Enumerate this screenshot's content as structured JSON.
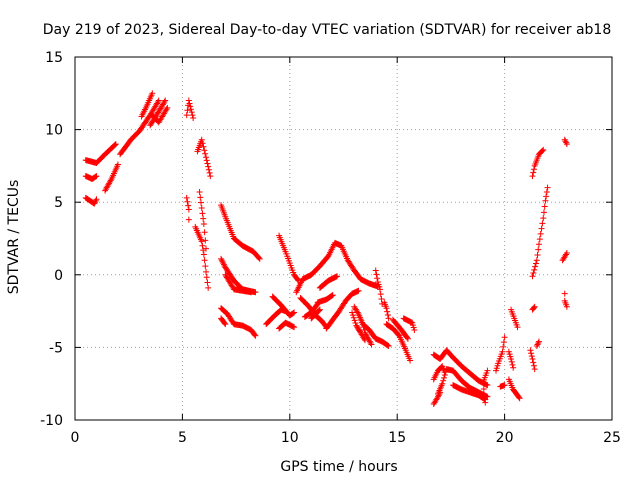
{
  "chart_data": {
    "type": "scatter",
    "title": "Day 219 of 2023, Sidereal Day-to-day VTEC variation (SDTVAR) for receiver ab18",
    "xlabel": "GPS time / hours",
    "ylabel": "SDTVAR / TECUs",
    "xlim": [
      0,
      25
    ],
    "ylim": [
      -10,
      15
    ],
    "xticks": [
      "0",
      "5",
      "10",
      "15",
      "20",
      "25"
    ],
    "yticks": [
      "-10",
      "-5",
      "0",
      "5",
      "10",
      "15"
    ],
    "grid": true,
    "marker": "+",
    "series": [
      {
        "name": "SDTVAR",
        "color": "#ff0000",
        "segments": [
          [
            [
              0.5,
              7.9
            ],
            [
              1.0,
              7.7
            ],
            [
              1.4,
              8.3
            ],
            [
              1.9,
              9.0
            ]
          ],
          [
            [
              0.5,
              6.8
            ],
            [
              0.8,
              6.6
            ],
            [
              1.0,
              6.8
            ]
          ],
          [
            [
              0.5,
              5.3
            ],
            [
              0.9,
              4.9
            ],
            [
              1.0,
              5.2
            ]
          ],
          [
            [
              1.4,
              5.8
            ],
            [
              1.7,
              6.6
            ],
            [
              2.0,
              7.6
            ]
          ],
          [
            [
              2.1,
              8.3
            ],
            [
              2.6,
              9.3
            ],
            [
              3.0,
              9.9
            ],
            [
              3.5,
              11.0
            ],
            [
              3.9,
              12.0
            ]
          ],
          [
            [
              3.1,
              10.9
            ],
            [
              3.3,
              11.5
            ],
            [
              3.6,
              12.5
            ]
          ],
          [
            [
              3.5,
              10.3
            ],
            [
              3.8,
              11.0
            ],
            [
              4.2,
              12.0
            ]
          ],
          [
            [
              3.6,
              11.0
            ],
            [
              3.9,
              10.5
            ],
            [
              4.3,
              11.5
            ]
          ],
          [
            [
              5.2,
              5.3
            ],
            [
              5.3,
              4.5
            ],
            [
              5.3,
              3.8
            ]
          ],
          [
            [
              5.2,
              11.0
            ],
            [
              5.3,
              12.0
            ],
            [
              5.5,
              10.8
            ]
          ],
          [
            [
              5.7,
              8.5
            ],
            [
              5.9,
              9.3
            ],
            [
              6.1,
              8.1
            ],
            [
              6.3,
              6.8
            ]
          ],
          [
            [
              5.8,
              5.7
            ],
            [
              6.0,
              3.5
            ],
            [
              6.1,
              1.8
            ]
          ],
          [
            [
              5.6,
              3.3
            ],
            [
              5.9,
              2.3
            ],
            [
              6.0,
              1.4
            ],
            [
              6.1,
              0.2
            ],
            [
              6.2,
              -0.9
            ]
          ],
          [
            [
              6.8,
              4.8
            ],
            [
              7.0,
              4.0
            ],
            [
              7.4,
              2.5
            ],
            [
              7.8,
              2.0
            ],
            [
              8.3,
              1.6
            ],
            [
              8.6,
              1.1
            ]
          ],
          [
            [
              6.8,
              1.1
            ],
            [
              7.0,
              0.5
            ],
            [
              7.4,
              -0.4
            ],
            [
              7.8,
              -1.0
            ],
            [
              8.4,
              -1.2
            ]
          ],
          [
            [
              7.0,
              0.0
            ],
            [
              7.4,
              -1.0
            ],
            [
              7.8,
              -1.1
            ],
            [
              8.2,
              -1.2
            ]
          ],
          [
            [
              6.8,
              -2.3
            ],
            [
              7.1,
              -2.7
            ],
            [
              7.4,
              -3.4
            ],
            [
              7.8,
              -3.5
            ],
            [
              8.2,
              -3.8
            ],
            [
              8.4,
              -4.2
            ]
          ],
          [
            [
              6.8,
              -3.0
            ],
            [
              7.0,
              -3.4
            ]
          ],
          [
            [
              9.5,
              2.7
            ],
            [
              9.8,
              1.6
            ],
            [
              10.2,
              0.0
            ],
            [
              10.4,
              -0.4
            ]
          ],
          [
            [
              9.2,
              -1.5
            ],
            [
              9.6,
              -2.1
            ],
            [
              10.0,
              -2.8
            ],
            [
              10.2,
              -2.6
            ]
          ],
          [
            [
              8.9,
              -3.4
            ],
            [
              9.3,
              -2.8
            ],
            [
              9.6,
              -2.4
            ],
            [
              9.8,
              -2.5
            ]
          ],
          [
            [
              9.5,
              -3.7
            ],
            [
              9.8,
              -3.3
            ],
            [
              10.2,
              -3.6
            ]
          ],
          [
            [
              10.3,
              -1.2
            ],
            [
              10.6,
              -0.3
            ],
            [
              11.0,
              0.0
            ],
            [
              11.4,
              0.6
            ],
            [
              11.8,
              1.3
            ],
            [
              12.1,
              2.2
            ],
            [
              12.4,
              2.0
            ],
            [
              12.7,
              1.0
            ],
            [
              13.0,
              0.3
            ],
            [
              13.3,
              -0.3
            ],
            [
              13.7,
              -0.6
            ],
            [
              14.1,
              -0.8
            ]
          ],
          [
            [
              10.5,
              -1.6
            ],
            [
              10.9,
              -2.2
            ],
            [
              11.2,
              -2.8
            ],
            [
              11.5,
              -3.2
            ],
            [
              11.7,
              -3.6
            ]
          ],
          [
            [
              10.7,
              -2.9
            ],
            [
              11.0,
              -2.6
            ],
            [
              11.3,
              -2.0
            ]
          ],
          [
            [
              11.3,
              -1.9
            ],
            [
              11.7,
              -1.7
            ],
            [
              12.0,
              -1.4
            ]
          ],
          [
            [
              11.4,
              -0.9
            ],
            [
              11.8,
              -0.4
            ],
            [
              12.2,
              -0.1
            ]
          ],
          [
            [
              11.0,
              -3.0
            ],
            [
              11.4,
              -2.4
            ]
          ],
          [
            [
              11.7,
              -3.7
            ],
            [
              12.0,
              -3.1
            ],
            [
              12.3,
              -2.5
            ],
            [
              12.6,
              -1.8
            ],
            [
              12.9,
              -1.3
            ],
            [
              13.2,
              -1.1
            ]
          ],
          [
            [
              12.9,
              -2.6
            ],
            [
              13.1,
              -3.5
            ],
            [
              13.3,
              -4.0
            ],
            [
              13.5,
              -4.5
            ]
          ],
          [
            [
              13.0,
              -2.2
            ],
            [
              13.2,
              -2.7
            ],
            [
              13.4,
              -3.4
            ],
            [
              13.5,
              -4.0
            ],
            [
              13.8,
              -4.8
            ]
          ],
          [
            [
              13.4,
              -3.4
            ],
            [
              13.7,
              -3.8
            ],
            [
              14.0,
              -4.4
            ],
            [
              14.3,
              -4.6
            ],
            [
              14.6,
              -4.9
            ]
          ],
          [
            [
              14.0,
              0.3
            ],
            [
              14.1,
              -0.5
            ],
            [
              14.2,
              -1.0
            ],
            [
              14.3,
              -2.0
            ]
          ],
          [
            [
              14.4,
              -1.9
            ],
            [
              14.5,
              -2.3
            ],
            [
              14.6,
              -3.0
            ]
          ],
          [
            [
              14.5,
              -3.4
            ],
            [
              14.8,
              -3.7
            ],
            [
              15.1,
              -4.2
            ],
            [
              15.4,
              -5.2
            ],
            [
              15.6,
              -5.9
            ]
          ],
          [
            [
              14.8,
              -3.1
            ],
            [
              15.2,
              -3.8
            ],
            [
              15.5,
              -4.4
            ]
          ],
          [
            [
              15.3,
              -3.0
            ],
            [
              15.7,
              -3.3
            ],
            [
              15.8,
              -3.8
            ]
          ],
          [
            [
              16.7,
              -5.5
            ],
            [
              17.0,
              -5.8
            ],
            [
              17.3,
              -5.2
            ],
            [
              17.6,
              -5.7
            ],
            [
              18.0,
              -6.3
            ],
            [
              18.4,
              -6.8
            ],
            [
              18.8,
              -7.3
            ],
            [
              19.2,
              -7.6
            ]
          ],
          [
            [
              16.9,
              -8.2
            ],
            [
              17.1,
              -7.5
            ],
            [
              17.3,
              -6.5
            ],
            [
              17.6,
              -6.6
            ],
            [
              18.0,
              -7.3
            ],
            [
              18.4,
              -7.8
            ],
            [
              18.8,
              -8.1
            ],
            [
              19.2,
              -8.4
            ]
          ],
          [
            [
              17.6,
              -7.6
            ],
            [
              18.0,
              -7.9
            ],
            [
              18.4,
              -8.1
            ],
            [
              18.8,
              -8.3
            ],
            [
              19.1,
              -8.6
            ]
          ],
          [
            [
              16.7,
              -7.2
            ],
            [
              16.9,
              -6.6
            ],
            [
              17.1,
              -6.3
            ],
            [
              17.2,
              -6.7
            ]
          ],
          [
            [
              16.7,
              -8.9
            ],
            [
              16.9,
              -8.4
            ],
            [
              17.0,
              -8.1
            ]
          ],
          [
            [
              19.2,
              -6.6
            ],
            [
              19.0,
              -7.4
            ],
            [
              19.1,
              -8.8
            ]
          ],
          [
            [
              19.6,
              -6.6
            ],
            [
              19.7,
              -6.1
            ],
            [
              19.9,
              -5.3
            ],
            [
              20.0,
              -4.3
            ]
          ],
          [
            [
              19.8,
              -7.7
            ],
            [
              20.0,
              -7.6
            ]
          ],
          [
            [
              20.2,
              -5.3
            ],
            [
              20.3,
              -5.8
            ],
            [
              20.4,
              -6.4
            ]
          ],
          [
            [
              20.2,
              -7.2
            ],
            [
              20.4,
              -7.9
            ],
            [
              20.6,
              -8.3
            ],
            [
              20.7,
              -8.5
            ]
          ],
          [
            [
              20.3,
              -2.4
            ],
            [
              20.6,
              -3.6
            ]
          ],
          [
            [
              21.3,
              -2.4
            ],
            [
              21.4,
              -2.2
            ]
          ],
          [
            [
              21.2,
              -5.2
            ],
            [
              21.3,
              -5.8
            ],
            [
              21.4,
              -6.5
            ]
          ],
          [
            [
              21.5,
              -4.9
            ],
            [
              21.6,
              -4.6
            ]
          ],
          [
            [
              21.3,
              6.8
            ],
            [
              21.4,
              7.5
            ],
            [
              21.6,
              8.3
            ],
            [
              21.8,
              8.6
            ]
          ],
          [
            [
              21.3,
              -0.1
            ],
            [
              21.5,
              1.0
            ],
            [
              21.6,
              2.1
            ],
            [
              21.8,
              3.9
            ],
            [
              21.9,
              5.1
            ],
            [
              22.0,
              6.0
            ]
          ],
          [
            [
              22.8,
              9.3
            ],
            [
              22.9,
              9.0
            ]
          ],
          [
            [
              22.7,
              1.0
            ],
            [
              22.9,
              1.5
            ]
          ],
          [
            [
              22.8,
              -1.3
            ],
            [
              22.8,
              -1.8
            ],
            [
              22.9,
              -2.2
            ]
          ]
        ]
      }
    ]
  }
}
